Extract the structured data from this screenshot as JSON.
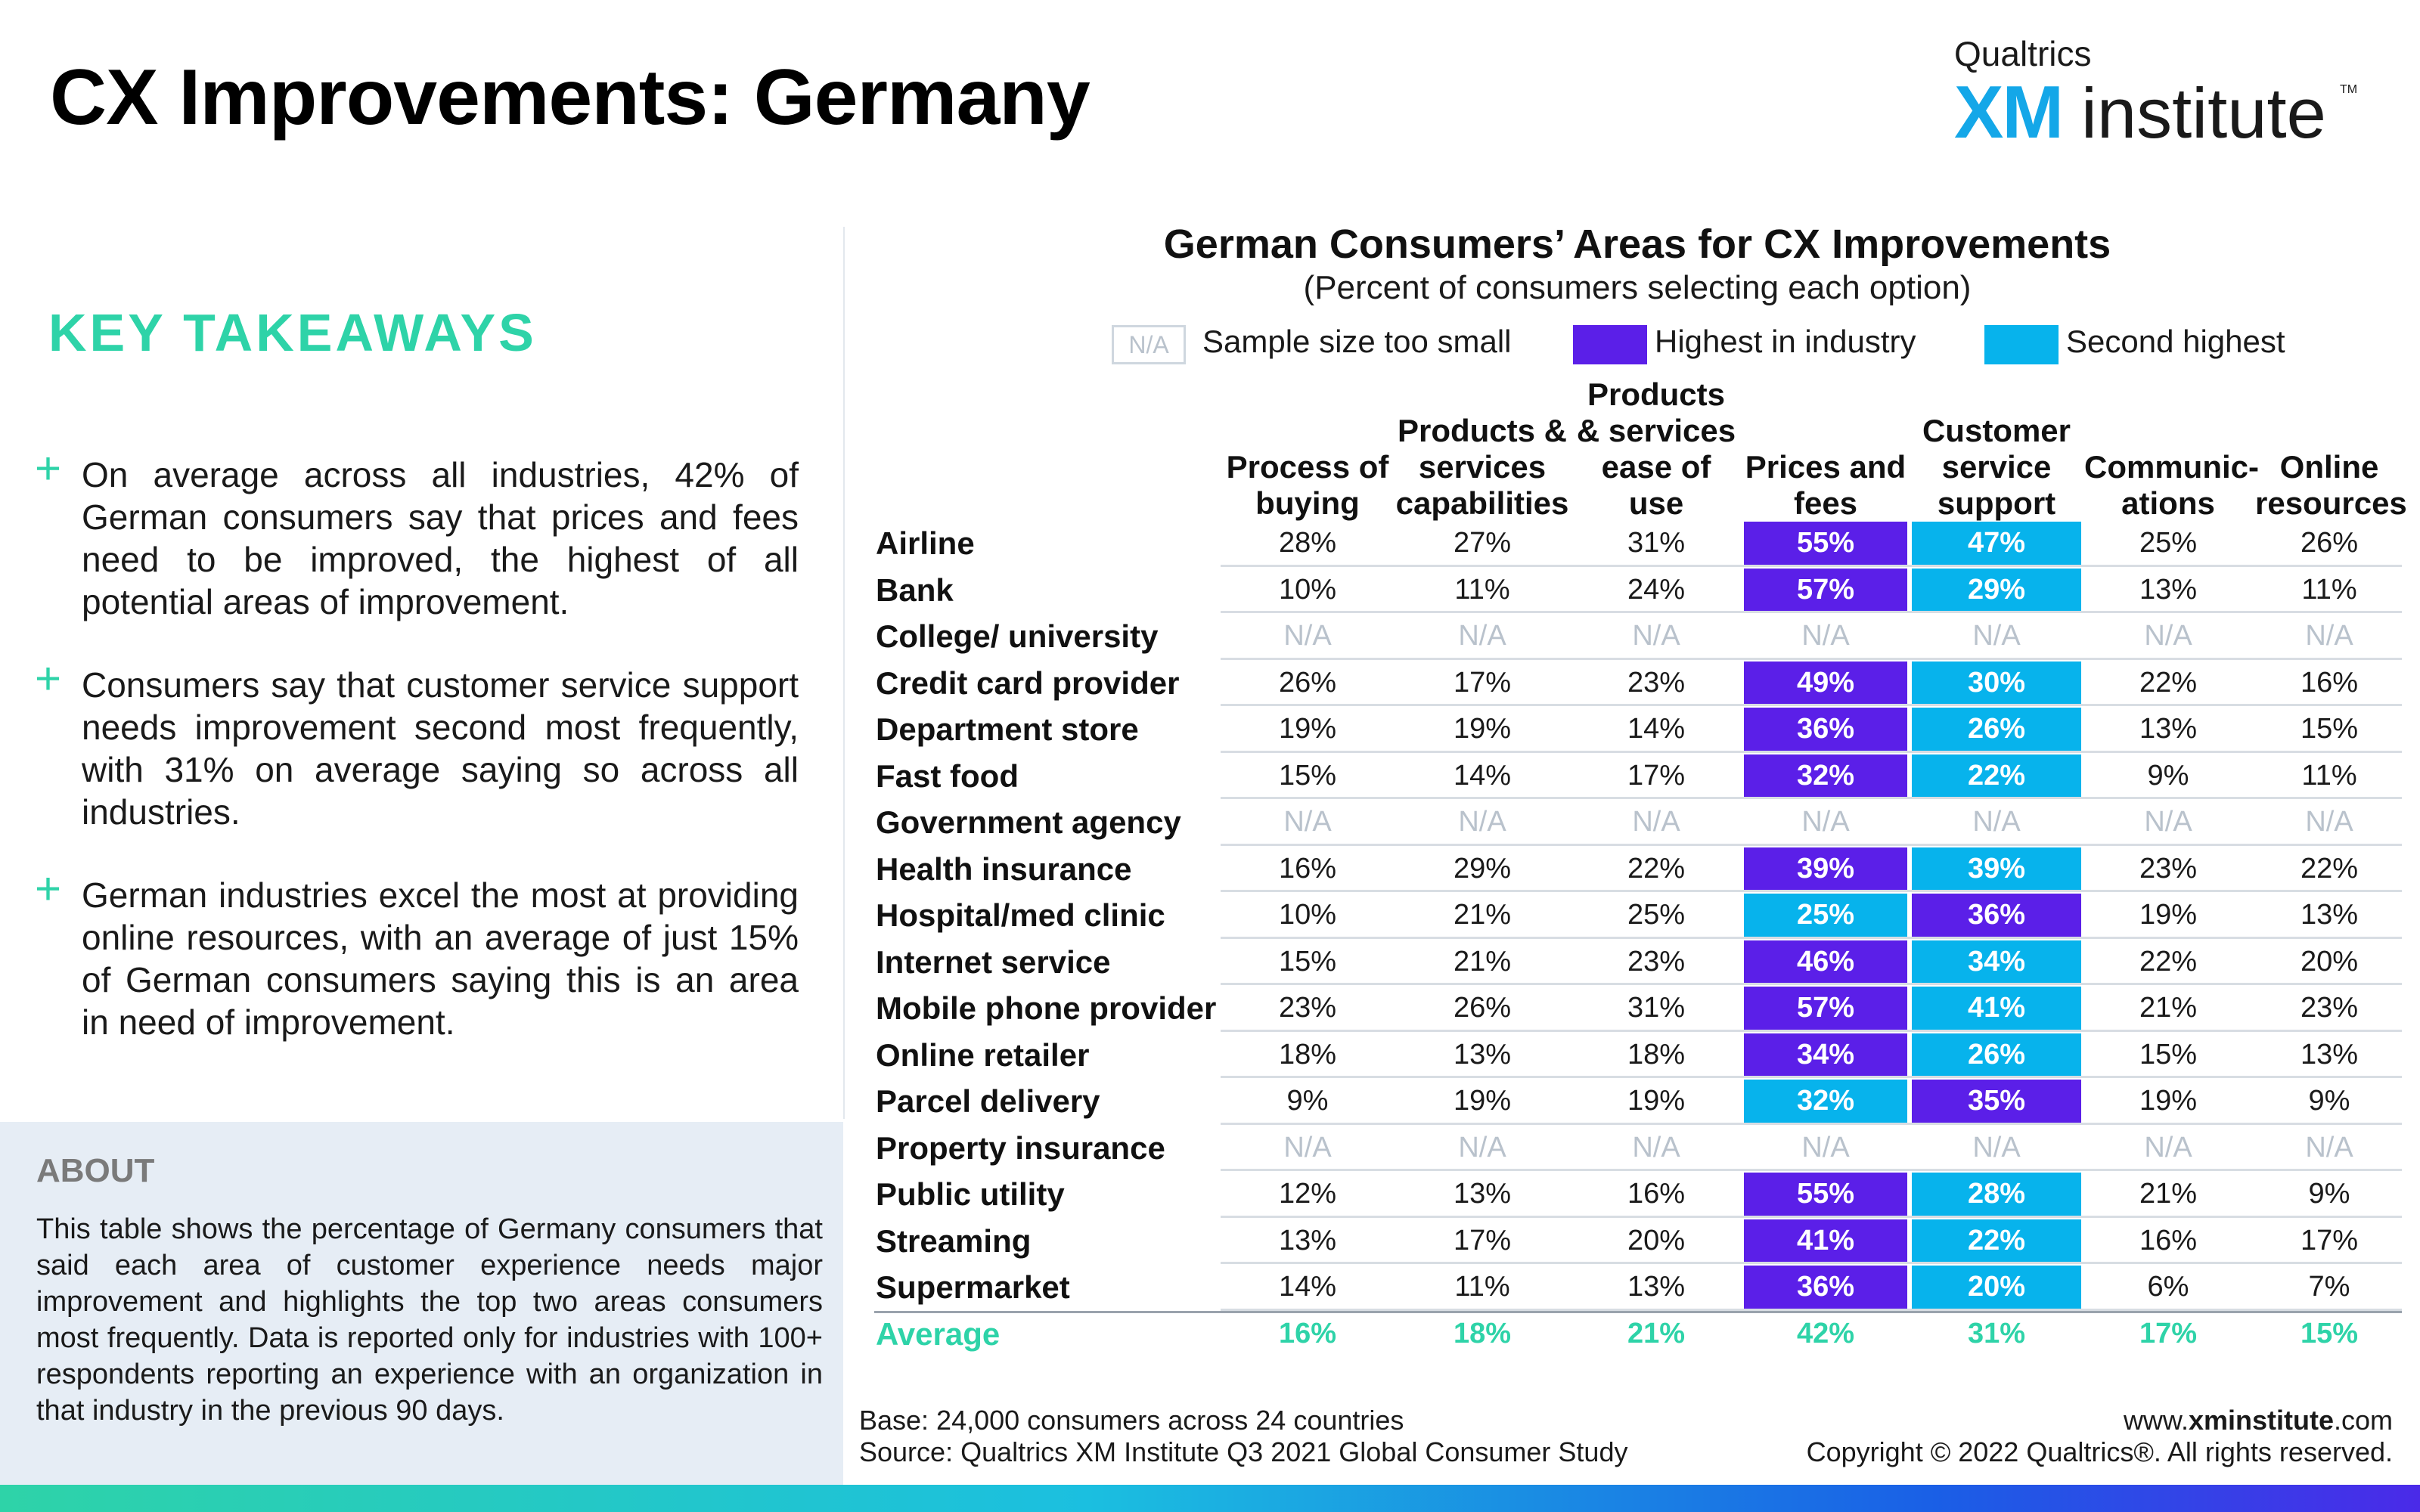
{
  "page": {
    "title": "CX Improvements: Germany"
  },
  "brand": {
    "top": "Qualtrics",
    "xm": "XM",
    "institute": "institute",
    "tm": "TM"
  },
  "takeaways": {
    "title": "KEY TAKEAWAYS",
    "items": [
      "On average across all industries, 42% of German consumers say that prices and fees need to be improved, the highest of all potential areas of improvement.",
      "Consumers say that customer service support needs improvement second most frequently, with 31% on average saying so across all industries.",
      "German industries excel the most at providing online resources, with an average of just 15% of German consumers saying this is an area in need of improvement."
    ]
  },
  "about": {
    "title": "ABOUT",
    "text": "This table shows the percentage of Germany consumers that said each area of customer experience needs major improvement and highlights the top two areas consumers most frequently. Data is reported only for industries with 100+ respondents reporting an experience with an organization in that industry in the previous 90 days."
  },
  "chart": {
    "title": "German Consumers’ Areas for CX Improvements",
    "subtitle": "(Percent of consumers selecting each option)",
    "legend": {
      "na_swatch": "N/A",
      "na_label": "Sample size too small",
      "highest_label": "Highest in industry",
      "second_label": "Second highest"
    },
    "colors": {
      "highest": "#5b1fe8",
      "second": "#07b3ec",
      "accent": "#2ed3a8"
    }
  },
  "chart_data": {
    "type": "table",
    "columns": [
      "Process of buying",
      "Products & services capabilities",
      "Products & services ease of use",
      "Prices and fees",
      "Customer service support",
      "Communic- ations",
      "Online resources"
    ],
    "rows": [
      {
        "label": "Airline",
        "values": [
          "28%",
          "27%",
          "31%",
          "55%",
          "47%",
          "25%",
          "26%"
        ],
        "highest": 3,
        "second": 4
      },
      {
        "label": "Bank",
        "values": [
          "10%",
          "11%",
          "24%",
          "57%",
          "29%",
          "13%",
          "11%"
        ],
        "highest": 3,
        "second": 4
      },
      {
        "label": "College/ university",
        "values": [
          "N/A",
          "N/A",
          "N/A",
          "N/A",
          "N/A",
          "N/A",
          "N/A"
        ],
        "highest": -1,
        "second": -1
      },
      {
        "label": "Credit card provider",
        "values": [
          "26%",
          "17%",
          "23%",
          "49%",
          "30%",
          "22%",
          "16%"
        ],
        "highest": 3,
        "second": 4
      },
      {
        "label": "Department store",
        "values": [
          "19%",
          "19%",
          "14%",
          "36%",
          "26%",
          "13%",
          "15%"
        ],
        "highest": 3,
        "second": 4
      },
      {
        "label": "Fast food",
        "values": [
          "15%",
          "14%",
          "17%",
          "32%",
          "22%",
          "9%",
          "11%"
        ],
        "highest": 3,
        "second": 4
      },
      {
        "label": "Government agency",
        "values": [
          "N/A",
          "N/A",
          "N/A",
          "N/A",
          "N/A",
          "N/A",
          "N/A"
        ],
        "highest": -1,
        "second": -1
      },
      {
        "label": "Health insurance",
        "values": [
          "16%",
          "29%",
          "22%",
          "39%",
          "39%",
          "23%",
          "22%"
        ],
        "highest": 3,
        "second": 4
      },
      {
        "label": "Hospital/med clinic",
        "values": [
          "10%",
          "21%",
          "25%",
          "25%",
          "36%",
          "19%",
          "13%"
        ],
        "highest": 4,
        "second": 3
      },
      {
        "label": "Internet service",
        "values": [
          "15%",
          "21%",
          "23%",
          "46%",
          "34%",
          "22%",
          "20%"
        ],
        "highest": 3,
        "second": 4
      },
      {
        "label": "Mobile phone provider",
        "values": [
          "23%",
          "26%",
          "31%",
          "57%",
          "41%",
          "21%",
          "23%"
        ],
        "highest": 3,
        "second": 4
      },
      {
        "label": "Online retailer",
        "values": [
          "18%",
          "13%",
          "18%",
          "34%",
          "26%",
          "15%",
          "13%"
        ],
        "highest": 3,
        "second": 4
      },
      {
        "label": "Parcel delivery",
        "values": [
          "9%",
          "19%",
          "19%",
          "32%",
          "35%",
          "19%",
          "9%"
        ],
        "highest": 4,
        "second": 3
      },
      {
        "label": "Property insurance",
        "values": [
          "N/A",
          "N/A",
          "N/A",
          "N/A",
          "N/A",
          "N/A",
          "N/A"
        ],
        "highest": -1,
        "second": -1
      },
      {
        "label": "Public utility",
        "values": [
          "12%",
          "13%",
          "16%",
          "55%",
          "28%",
          "21%",
          "9%"
        ],
        "highest": 3,
        "second": 4
      },
      {
        "label": "Streaming",
        "values": [
          "13%",
          "17%",
          "20%",
          "41%",
          "22%",
          "16%",
          "17%"
        ],
        "highest": 3,
        "second": 4
      },
      {
        "label": "Supermarket",
        "values": [
          "14%",
          "11%",
          "13%",
          "36%",
          "20%",
          "6%",
          "7%"
        ],
        "highest": 3,
        "second": 4
      }
    ],
    "average": {
      "label": "Average",
      "values": [
        "16%",
        "18%",
        "21%",
        "42%",
        "31%",
        "17%",
        "15%"
      ]
    }
  },
  "footnotes": {
    "base": "Base: 24,000 consumers across 24 countries",
    "source": "Source: Qualtrics XM Institute Q3 2021 Global Consumer Study",
    "url_prefix": "www.",
    "url_bold": "xminstitute",
    "url_suffix": ".com",
    "copyright": "Copyright © 2022 Qualtrics®. All rights reserved."
  }
}
